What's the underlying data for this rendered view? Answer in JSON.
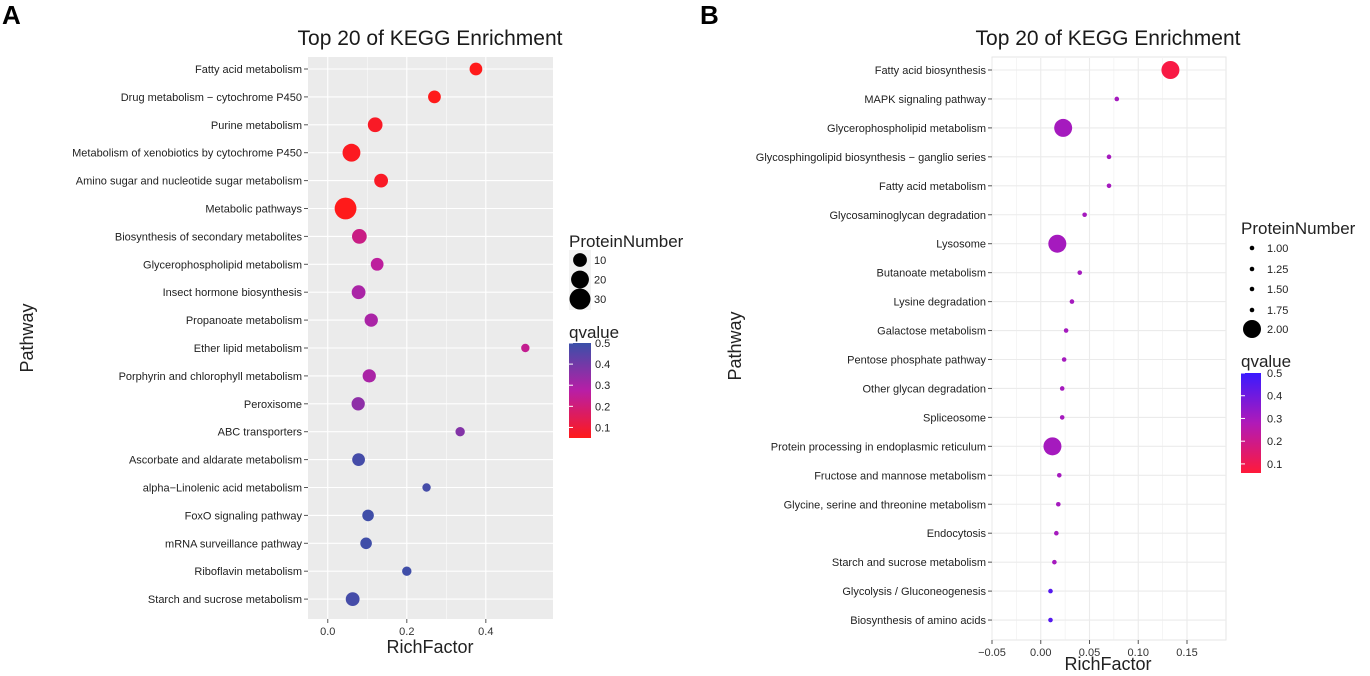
{
  "chart_data": [
    {
      "panel": "A",
      "type": "scatter",
      "title": "Top 20 of KEGG Enrichment",
      "xlabel": "RichFactor",
      "ylabel": "Pathway",
      "xlim": [
        -0.05,
        0.57
      ],
      "xticks": [
        0.0,
        0.2,
        0.4
      ],
      "xtick_labels": [
        "0.0",
        "0.2",
        "0.4"
      ],
      "size_legend_title": "ProteinNumber",
      "size_legend": [
        {
          "label": "10",
          "value": 10
        },
        {
          "label": "20",
          "value": 20
        },
        {
          "label": "30",
          "value": 30
        }
      ],
      "color_legend_title": "qvalue",
      "color_legend_ticks": [
        {
          "label": "0.5",
          "value": 0.5
        },
        {
          "label": "0.4",
          "value": 0.4
        },
        {
          "label": "0.3",
          "value": 0.3
        },
        {
          "label": "0.2",
          "value": 0.2
        },
        {
          "label": "0.1",
          "value": 0.1
        }
      ],
      "color_range": [
        0.05,
        0.5
      ],
      "color_low": "#ff1a1a",
      "color_mid": "#b81ea6",
      "color_high": "#3a50a8",
      "pathways": [
        {
          "name": "Fatty acid metabolism",
          "x": 0.375,
          "size": 8,
          "q": 0.05
        },
        {
          "name": "Drug metabolism − cytochrome P450",
          "x": 0.27,
          "size": 8,
          "q": 0.05
        },
        {
          "name": "Purine metabolism",
          "x": 0.12,
          "size": 12,
          "q": 0.07
        },
        {
          "name": "Metabolism of xenobiotics by cytochrome P450",
          "x": 0.06,
          "size": 20,
          "q": 0.06
        },
        {
          "name": "Amino sugar and nucleotide sugar metabolism",
          "x": 0.135,
          "size": 10,
          "q": 0.07
        },
        {
          "name": "Metabolic pathways",
          "x": 0.045,
          "size": 33,
          "q": 0.05
        },
        {
          "name": "Biosynthesis of secondary metabolites",
          "x": 0.08,
          "size": 12,
          "q": 0.22
        },
        {
          "name": "Glycerophospholipid metabolism",
          "x": 0.125,
          "size": 8,
          "q": 0.26
        },
        {
          "name": "Insect hormone biosynthesis",
          "x": 0.078,
          "size": 10,
          "q": 0.3
        },
        {
          "name": "Propanoate metabolism",
          "x": 0.11,
          "size": 9,
          "q": 0.3
        },
        {
          "name": "Ether lipid metabolism",
          "x": 0.5,
          "size": 2,
          "q": 0.24
        },
        {
          "name": "Porphyrin and chlorophyll metabolism",
          "x": 0.105,
          "size": 9,
          "q": 0.3
        },
        {
          "name": "Peroxisome",
          "x": 0.077,
          "size": 9,
          "q": 0.35
        },
        {
          "name": "ABC transporters",
          "x": 0.335,
          "size": 3,
          "q": 0.37
        },
        {
          "name": "Ascorbate and aldarate metabolism",
          "x": 0.078,
          "size": 8,
          "q": 0.48
        },
        {
          "name": "alpha−Linolenic acid metabolism",
          "x": 0.25,
          "size": 2,
          "q": 0.48
        },
        {
          "name": "FoxO signaling pathway",
          "x": 0.102,
          "size": 6,
          "q": 0.49
        },
        {
          "name": "mRNA surveillance pathway",
          "x": 0.097,
          "size": 6,
          "q": 0.49
        },
        {
          "name": "Riboflavin metabolism",
          "x": 0.2,
          "size": 3,
          "q": 0.49
        },
        {
          "name": "Starch and sucrose metabolism",
          "x": 0.063,
          "size": 10,
          "q": 0.48
        }
      ]
    },
    {
      "panel": "B",
      "type": "scatter",
      "title": "Top 20 of KEGG Enrichment",
      "xlabel": "RichFactor",
      "ylabel": "Pathway",
      "xlim": [
        -0.05,
        0.19
      ],
      "xticks": [
        -0.05,
        0.0,
        0.05,
        0.1,
        0.15
      ],
      "xtick_labels": [
        "−0.05",
        "0.00",
        "0.05",
        "0.10",
        "0.15"
      ],
      "size_legend_title": "ProteinNumber",
      "size_legend": [
        {
          "label": "1.00",
          "value": 1.0
        },
        {
          "label": "1.25",
          "value": 1.25
        },
        {
          "label": "1.50",
          "value": 1.5
        },
        {
          "label": "1.75",
          "value": 1.75
        },
        {
          "label": "2.00",
          "value": 2.0
        }
      ],
      "color_legend_title": "qvalue",
      "color_legend_ticks": [
        {
          "label": "0.5",
          "value": 0.5
        },
        {
          "label": "0.4",
          "value": 0.4
        },
        {
          "label": "0.3",
          "value": 0.3
        },
        {
          "label": "0.2",
          "value": 0.2
        },
        {
          "label": "0.1",
          "value": 0.1
        }
      ],
      "color_range": [
        0.06,
        0.5
      ],
      "color_low": "#ff1a3a",
      "color_mid": "#b01ab8",
      "color_high": "#3a1aff",
      "pathways": [
        {
          "name": "Fatty acid biosynthesis",
          "x": 0.133,
          "size": 2,
          "q": 0.08
        },
        {
          "name": "MAPK signaling pathway",
          "x": 0.078,
          "size": 1,
          "q": 0.3
        },
        {
          "name": "Glycerophospholipid metabolism",
          "x": 0.023,
          "size": 2,
          "q": 0.3
        },
        {
          "name": "Glycosphingolipid biosynthesis − ganglio series",
          "x": 0.07,
          "size": 1,
          "q": 0.3
        },
        {
          "name": "Fatty acid metabolism",
          "x": 0.07,
          "size": 1,
          "q": 0.3
        },
        {
          "name": "Glycosaminoglycan degradation",
          "x": 0.045,
          "size": 1,
          "q": 0.3
        },
        {
          "name": "Lysosome",
          "x": 0.017,
          "size": 2,
          "q": 0.3
        },
        {
          "name": "Butanoate metabolism",
          "x": 0.04,
          "size": 1,
          "q": 0.3
        },
        {
          "name": "Lysine degradation",
          "x": 0.032,
          "size": 1,
          "q": 0.3
        },
        {
          "name": "Galactose metabolism",
          "x": 0.026,
          "size": 1,
          "q": 0.3
        },
        {
          "name": "Pentose phosphate pathway",
          "x": 0.024,
          "size": 1,
          "q": 0.3
        },
        {
          "name": "Other glycan degradation",
          "x": 0.022,
          "size": 1,
          "q": 0.3
        },
        {
          "name": "Spliceosome",
          "x": 0.022,
          "size": 1,
          "q": 0.3
        },
        {
          "name": "Protein processing in endoplasmic reticulum",
          "x": 0.012,
          "size": 2,
          "q": 0.3
        },
        {
          "name": "Fructose and mannose metabolism",
          "x": 0.019,
          "size": 1,
          "q": 0.3
        },
        {
          "name": "Glycine, serine and threonine metabolism",
          "x": 0.018,
          "size": 1,
          "q": 0.3
        },
        {
          "name": "Endocytosis",
          "x": 0.016,
          "size": 1,
          "q": 0.3
        },
        {
          "name": "Starch and sucrose metabolism",
          "x": 0.014,
          "size": 1,
          "q": 0.3
        },
        {
          "name": "Glycolysis / Gluconeogenesis",
          "x": 0.01,
          "size": 1,
          "q": 0.45
        },
        {
          "name": "Biosynthesis of amino acids",
          "x": 0.01,
          "size": 1,
          "q": 0.45
        }
      ]
    }
  ]
}
